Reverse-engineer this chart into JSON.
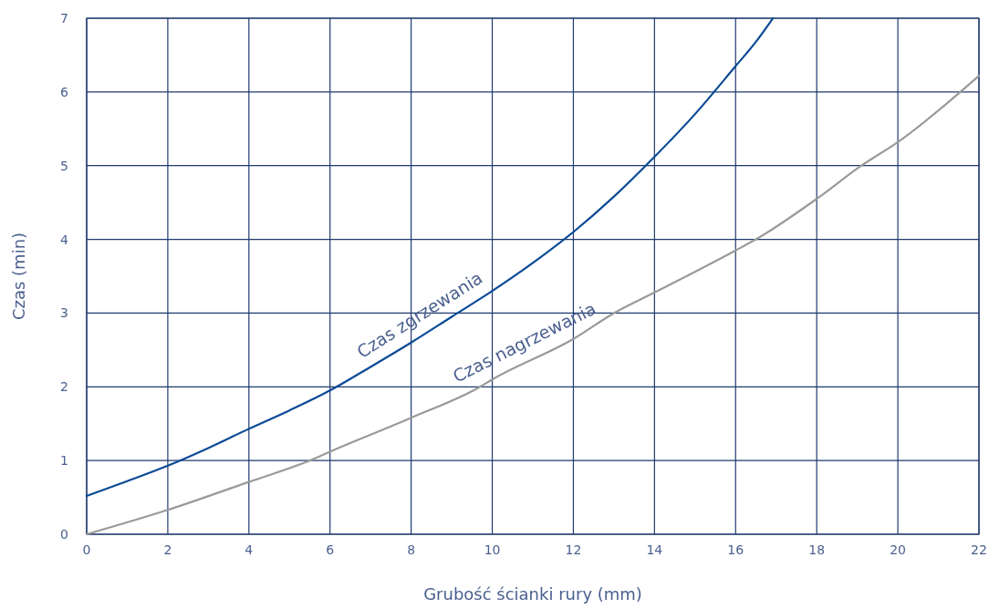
{
  "chart_data": {
    "type": "line",
    "xlabel": "Grubość ścianki rury (mm)",
    "ylabel": "Czas (min)",
    "xlim": [
      0,
      22
    ],
    "ylim": [
      0,
      7
    ],
    "xticks": [
      0,
      2,
      4,
      6,
      8,
      10,
      12,
      14,
      16,
      18,
      20,
      22
    ],
    "yticks": [
      0,
      1,
      2,
      3,
      4,
      5,
      6,
      7
    ],
    "grid": true,
    "marker": "none",
    "line_style": "solid",
    "series": [
      {
        "name": "Czas zgrzewania",
        "color": "#0b4a96",
        "x": [
          0,
          1,
          2,
          3,
          4,
          5,
          6,
          7,
          8,
          9,
          10,
          11,
          12,
          13,
          14,
          15,
          16,
          16.5,
          16.92
        ],
        "values": [
          0.52,
          0.72,
          0.93,
          1.17,
          1.43,
          1.68,
          1.95,
          2.27,
          2.6,
          2.95,
          3.3,
          3.68,
          4.1,
          4.58,
          5.12,
          5.7,
          6.35,
          6.68,
          7.0
        ]
      },
      {
        "name": "Czas nagrzewania",
        "color": "#9a9a9a",
        "x": [
          0,
          2,
          4,
          5.5,
          6,
          8,
          9.7,
          10,
          12,
          13,
          14,
          16,
          16.5,
          18,
          19.1,
          20,
          22
        ],
        "values": [
          0,
          0.33,
          0.71,
          1.0,
          1.12,
          1.58,
          2.0,
          2.1,
          2.65,
          3.0,
          3.28,
          3.85,
          4.0,
          4.55,
          5.0,
          5.32,
          6.22
        ]
      }
    ]
  }
}
